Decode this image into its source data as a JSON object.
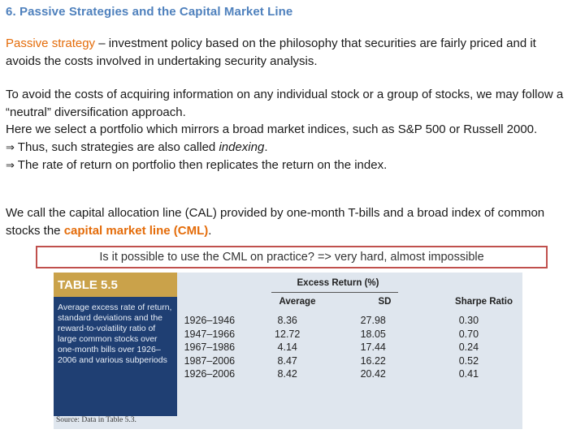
{
  "slide": {
    "title": "6. Passive Strategies and the Capital Market Line",
    "p1": {
      "term": "Passive strategy",
      "text": " – investment policy based on the philosophy that securities are fairly priced and it avoids the costs involved in undertaking security analysis."
    },
    "p2": {
      "line1": "To avoid the costs of acquiring information on any individual stock or a group of stocks, we may follow a “neutral” diversification approach.",
      "line2": "Here we select a portfolio which mirrors a broad market indices, such as S&P 500 or Russell 2000.",
      "bullet1_prefix": " Thus, such strategies are also called ",
      "bullet1_term": "indexing",
      "bullet1_suffix": ".",
      "bullet2": " The rate of return on portfolio then replicates the return on the index."
    },
    "p3": {
      "text": "We call the capital allocation line (CAL) provided by one-month T-bills and a broad index of common stocks the ",
      "term": "capital market line (CML)",
      "end": "."
    },
    "question": "Is it possible to use the CML on practice? => very hard, almost impossible"
  },
  "table": {
    "title": "TABLE 5.5",
    "caption": "Average excess rate of return, standard deviations and the reward-to-volatility ratio of large common stocks over one-month bills over 1926–2006 and various subperiods",
    "source": "Source: Data in Table 5.3.",
    "group_header": "Excess Return (%)",
    "columns": [
      "Average",
      "SD",
      "Sharpe Ratio"
    ],
    "rows": [
      {
        "period": "1926–1946",
        "average": "8.36",
        "sd": "27.98",
        "sharpe": "0.30"
      },
      {
        "period": "1947–1966",
        "average": "12.72",
        "sd": "18.05",
        "sharpe": "0.70"
      },
      {
        "period": "1967–1986",
        "average": "4.14",
        "sd": "17.44",
        "sharpe": "0.24"
      },
      {
        "period": "1987–2006",
        "average": "8.47",
        "sd": "16.22",
        "sharpe": "0.52"
      },
      {
        "period": "1926–2006",
        "average": "8.42",
        "sd": "20.42",
        "sharpe": "0.41"
      }
    ]
  },
  "icons": {
    "implies": "implies-arrow-icon"
  },
  "colors": {
    "title": "#4f81bd",
    "accent": "#e46c0a",
    "box_border": "#c0504d",
    "table_panel": "#1f3f73",
    "table_title": "#caa24a"
  }
}
